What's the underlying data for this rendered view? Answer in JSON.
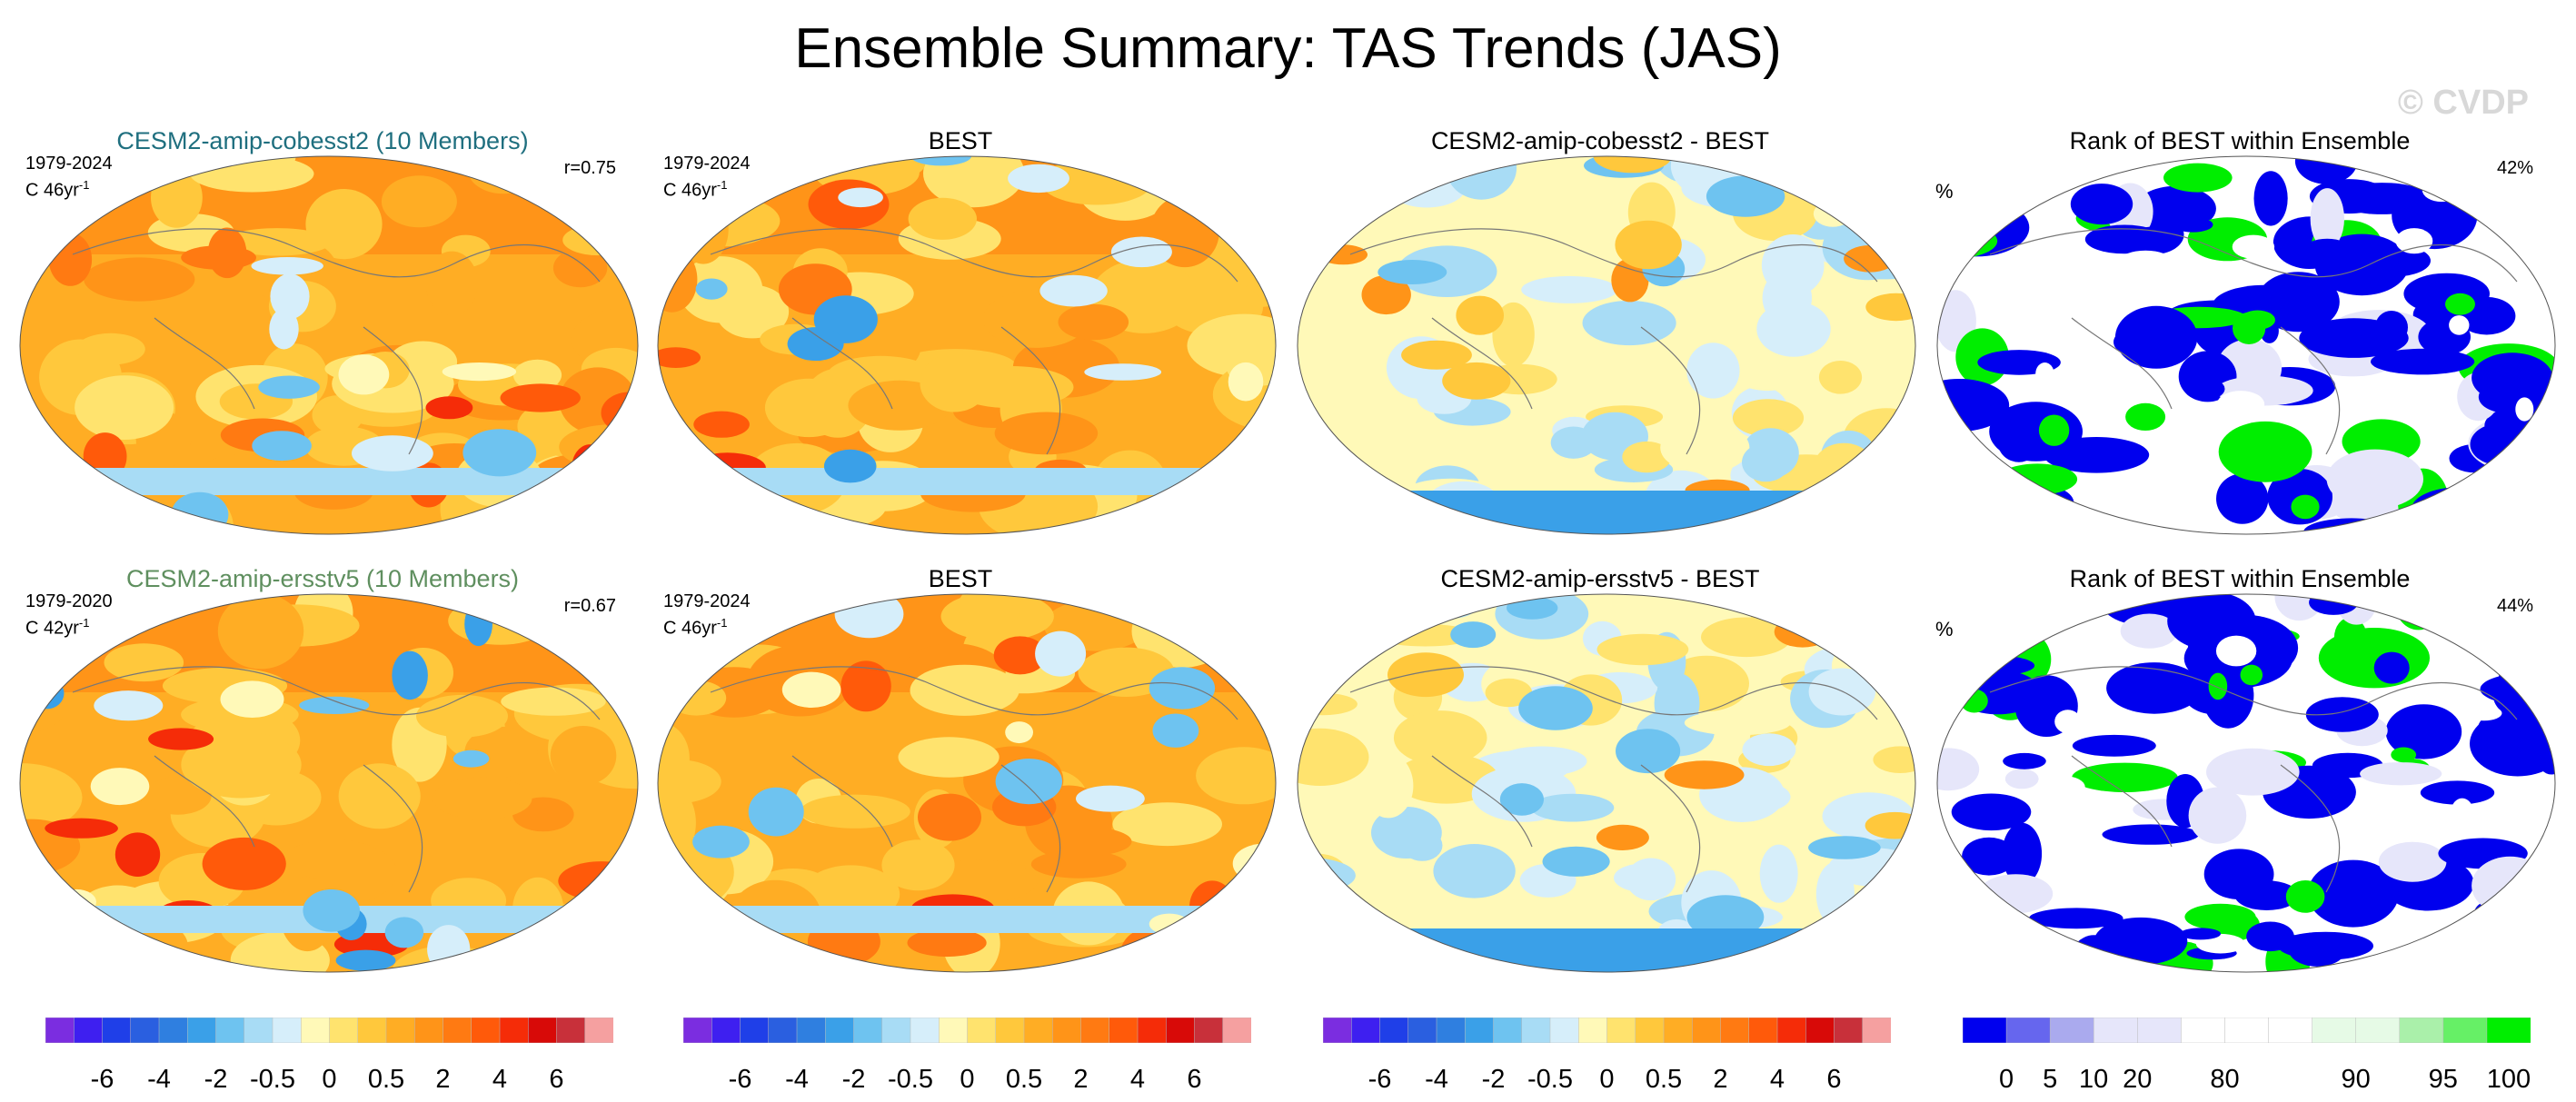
{
  "title": "Ensemble Summary: TAS Trends (JAS)",
  "watermark": "© CVDP",
  "panels": [
    {
      "id": "r1c1",
      "title": "CESM2-amip-cobesst2 (10 Members)",
      "title_color": "#1f6f7f",
      "period": "1979-2024",
      "units": "C 46yr",
      "units_sup": "-1",
      "stat": "r=0.75",
      "kind": "trend",
      "seed": 11
    },
    {
      "id": "r1c2",
      "title": "BEST",
      "title_color": "#000000",
      "period": "1979-2024",
      "units": "C 46yr",
      "units_sup": "-1",
      "stat": "",
      "kind": "trend",
      "seed": 23
    },
    {
      "id": "r1c3",
      "title": "CESM2-amip-cobesst2 - BEST",
      "title_color": "#000000",
      "period": "",
      "units": "",
      "units_sup": "",
      "stat": "",
      "kind": "diff",
      "seed": 37
    },
    {
      "id": "r1c4",
      "title": "Rank of BEST within Ensemble",
      "title_color": "#000000",
      "period": "",
      "units": "",
      "units_sup": "",
      "stat": "42%",
      "pct_label": "%",
      "kind": "rank",
      "seed": 41
    },
    {
      "id": "r2c1",
      "title": "CESM2-amip-ersstv5 (10 Members)",
      "title_color": "#5f8f5f",
      "period": "1979-2020",
      "units": "C 42yr",
      "units_sup": "-1",
      "stat": "r=0.67",
      "kind": "trend",
      "seed": 53
    },
    {
      "id": "r2c2",
      "title": "BEST",
      "title_color": "#000000",
      "period": "1979-2024",
      "units": "C 46yr",
      "units_sup": "-1",
      "stat": "",
      "kind": "trend",
      "seed": 67
    },
    {
      "id": "r2c3",
      "title": "CESM2-amip-ersstv5 - BEST",
      "title_color": "#000000",
      "period": "",
      "units": "",
      "units_sup": "",
      "stat": "",
      "kind": "diff",
      "seed": 71
    },
    {
      "id": "r2c4",
      "title": "Rank of BEST within Ensemble",
      "title_color": "#000000",
      "period": "",
      "units": "",
      "units_sup": "",
      "stat": "44%",
      "pct_label": "%",
      "kind": "rank",
      "seed": 83
    }
  ],
  "chart_data": {
    "type": "heatmap",
    "projection": "Robinson (global)",
    "trend_colorbar": {
      "colors": [
        "#7b2de0",
        "#3e1ff0",
        "#1f3fe8",
        "#2a5fe0",
        "#2f7fe0",
        "#3aa0e8",
        "#6ec3f0",
        "#a8dcf5",
        "#d6eefa",
        "#fff9b8",
        "#ffe36e",
        "#ffc83c",
        "#ffad24",
        "#ff9418",
        "#ff7a12",
        "#ff5a0a",
        "#f52c08",
        "#d80a08",
        "#c8303a",
        "#f5a0a0"
      ],
      "tick_labels": [
        "-6",
        "-4",
        "-2",
        "-0.5",
        "0",
        "0.5",
        "2",
        "4",
        "6"
      ]
    },
    "rank_colorbar": {
      "colors": [
        "#0000ee",
        "#6666ee",
        "#aaaaee",
        "#e6e6fa",
        "#e6e6fa",
        "#ffffff",
        "#ffffff",
        "#ffffff",
        "#e6fae6",
        "#e6fae6",
        "#aaf0aa",
        "#66f066",
        "#00ee00"
      ],
      "tick_labels": [
        "0",
        "5",
        "10",
        "20",
        "80",
        "90",
        "95",
        "100"
      ]
    }
  }
}
